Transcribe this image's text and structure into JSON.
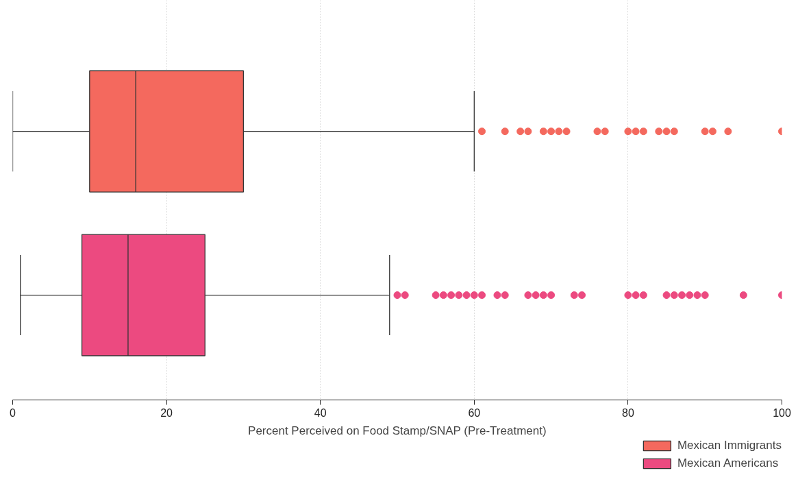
{
  "chart_data": {
    "type": "box",
    "orientation": "horizontal",
    "xlabel": "Percent Perceived on Food Stamp/SNAP (Pre-Treatment)",
    "categories": [
      null,
      null
    ],
    "xlim": [
      0,
      100
    ],
    "xticks": [
      0,
      20,
      40,
      60,
      80,
      100
    ],
    "grid": "x",
    "legend": "bottom right",
    "tick_labels": "x",
    "series": [
      {
        "name": "Mexican Immigrants",
        "color": "#f4695e",
        "boxes": [
          {
            "low": 0,
            "q1": 10,
            "median": 16,
            "q3": 30,
            "high": 60,
            "outliers": [
              61,
              64,
              66,
              67,
              69,
              70,
              71,
              72,
              76,
              77,
              80,
              81,
              82,
              84,
              85,
              86,
              90,
              91,
              93,
              100
            ]
          },
          null
        ]
      },
      {
        "name": "Mexican Americans",
        "color": "#ec4a80",
        "boxes": [
          null,
          {
            "low": 1,
            "q1": 9,
            "median": 15,
            "q3": 25,
            "high": 49,
            "outliers": [
              50,
              51,
              55,
              56,
              57,
              58,
              59,
              60,
              61,
              63,
              64,
              67,
              68,
              69,
              70,
              73,
              74,
              80,
              81,
              82,
              85,
              86,
              87,
              88,
              89,
              90,
              95,
              100
            ]
          }
        ]
      }
    ]
  }
}
